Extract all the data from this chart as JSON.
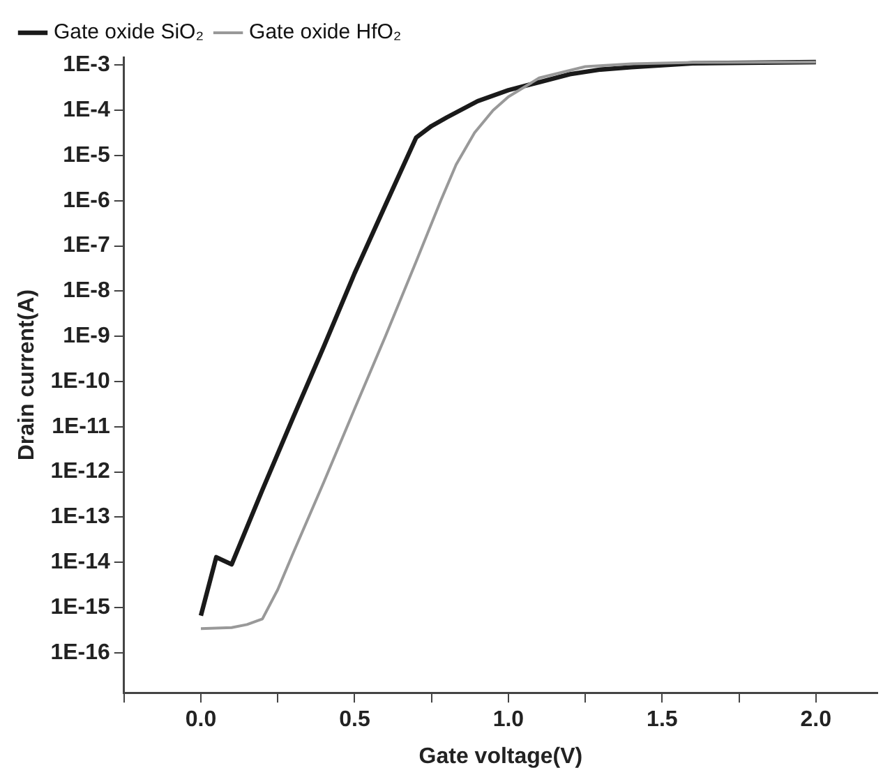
{
  "chart_data": {
    "type": "line",
    "xlabel": "Gate voltage(V)",
    "ylabel": "Drain current(A)",
    "log": "y",
    "grid": false,
    "legend": "top left",
    "marker": "none",
    "line_style": "solid",
    "xlim": [
      -0.25,
      2.2
    ],
    "xticks": [
      {
        "value": -0.25,
        "label": null
      },
      {
        "value": 0,
        "label": "0.0"
      },
      {
        "value": 0.25,
        "label": null
      },
      {
        "value": 0.5,
        "label": "0.5"
      },
      {
        "value": 0.75,
        "label": null
      },
      {
        "value": 1,
        "label": "1.0"
      },
      {
        "value": 1.25,
        "label": null
      },
      {
        "value": 1.5,
        "label": "1.5"
      },
      {
        "value": 1.75,
        "label": null
      },
      {
        "value": 2,
        "label": "2.0"
      }
    ],
    "ylim": [
      1.3e-17,
      0.0015
    ],
    "yticks": [
      {
        "value": 1e-16,
        "label": "1E-16"
      },
      {
        "value": 1e-15,
        "label": "1E-15"
      },
      {
        "value": 1e-14,
        "label": "1E-14"
      },
      {
        "value": 1e-13,
        "label": "1E-13"
      },
      {
        "value": 1e-12,
        "label": "1E-12"
      },
      {
        "value": 1e-11,
        "label": "1E-11"
      },
      {
        "value": 1e-10,
        "label": "1E-10"
      },
      {
        "value": 1e-09,
        "label": "1E-9"
      },
      {
        "value": 1e-08,
        "label": "1E-8"
      },
      {
        "value": 1e-07,
        "label": "1E-7"
      },
      {
        "value": 1e-06,
        "label": "1E-6"
      },
      {
        "value": 1e-05,
        "label": "1E-5"
      },
      {
        "value": 0.0001,
        "label": "1E-4"
      },
      {
        "value": 0.001,
        "label": "1E-3"
      }
    ],
    "series": [
      {
        "name": "Gate oxide SiO₂",
        "color": "#1a1a1a",
        "x": [
          0,
          0.05,
          0.1,
          0.2,
          0.3,
          0.4,
          0.5,
          0.6,
          0.7,
          0.75,
          0.8,
          0.9,
          1.0,
          1.1,
          1.2,
          1.3,
          1.4,
          1.6,
          2.0
        ],
        "values": [
          6.6e-16,
          1.3e-14,
          9e-15,
          4e-13,
          1.6e-11,
          6e-10,
          2.5e-08,
          8e-07,
          2.5e-05,
          4.5e-05,
          7e-05,
          0.00016,
          0.00028,
          0.00042,
          0.00063,
          0.0008,
          0.0009,
          0.0011,
          0.00117
        ]
      },
      {
        "name": "Gate oxide HfO₂",
        "color": "#999999",
        "x": [
          0,
          0.1,
          0.15,
          0.2,
          0.25,
          0.3,
          0.4,
          0.5,
          0.6,
          0.7,
          0.78,
          0.83,
          0.89,
          0.95,
          1.0,
          1.1,
          1.25,
          1.4,
          1.6,
          2.0
        ],
        "values": [
          3.4e-16,
          3.6e-16,
          4.2e-16,
          5.6e-16,
          2.5e-15,
          1.6e-14,
          6e-13,
          2.5e-11,
          1e-09,
          4.5e-08,
          1e-06,
          6.3e-06,
          3.2e-05,
          0.0001,
          0.0002,
          0.00052,
          0.00093,
          0.00107,
          0.00115,
          0.00117
        ]
      }
    ]
  }
}
